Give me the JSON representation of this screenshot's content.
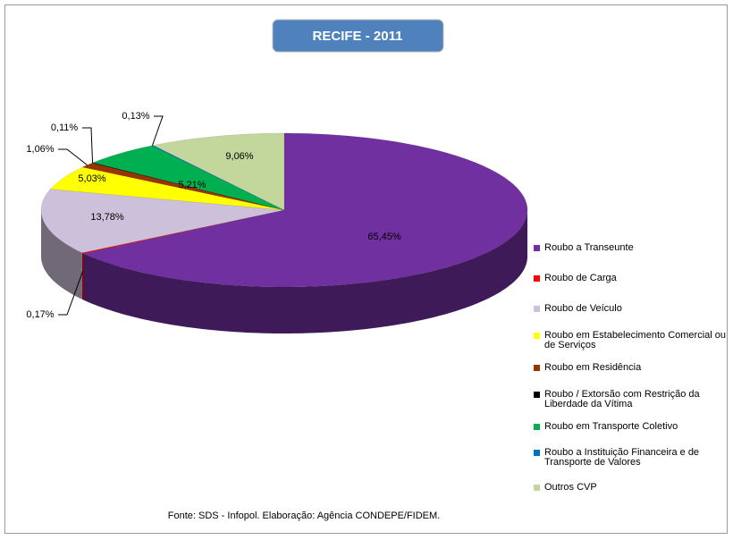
{
  "chart_data": {
    "type": "pie3d",
    "title": "RECIFE - 2011",
    "source": "Fonte: SDS - Infopol.  Elaboração: Agência CONDEPE/FIDEM.",
    "categories": [
      "Roubo a Transeunte",
      "Roubo de Carga",
      "Roubo de Veículo",
      "Roubo em Estabelecimento Comercial ou de Serviços",
      "Roubo em Residência",
      "Roubo / Extorsão com Restrição da Liberdade da Vítima",
      "Roubo em Transporte Coletivo",
      "Roubo a Instituição Financeira e de Transporte de Valores",
      "Outros CVP"
    ],
    "values": [
      65.45,
      0.17,
      13.78,
      5.03,
      1.06,
      0.11,
      5.21,
      0.13,
      9.06
    ],
    "value_labels": [
      "65,45%",
      "0,17%",
      "13,78%",
      "5,03%",
      "1,06%",
      "0,11%",
      "5,21%",
      "0,13%",
      "9,06%"
    ],
    "colors": [
      "#7030a0",
      "#ff0000",
      "#ccc0da",
      "#ffff00",
      "#993300",
      "#000000",
      "#00b050",
      "#0070c0",
      "#c3d69b"
    ],
    "legend": "right"
  }
}
